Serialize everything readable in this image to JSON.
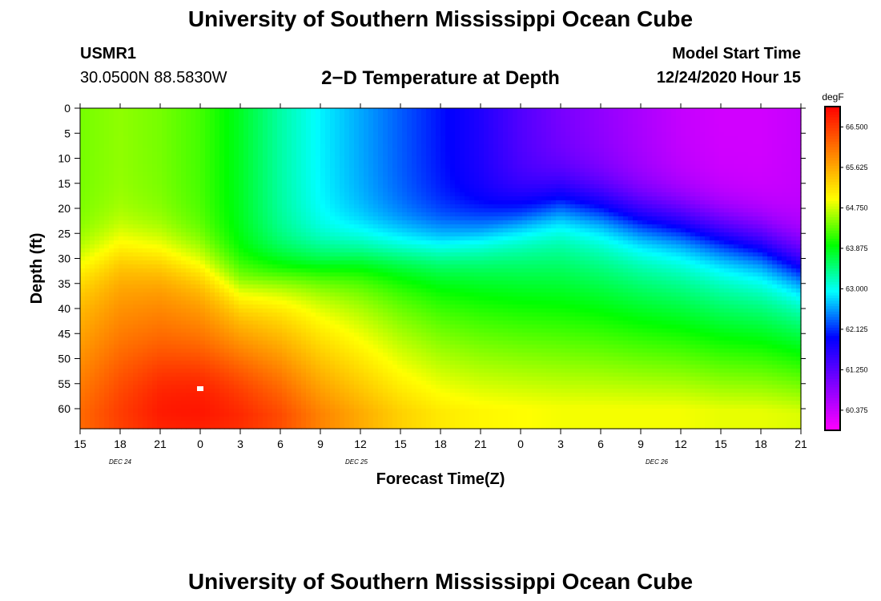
{
  "page": {
    "title_top": "University of Southern Mississippi Ocean Cube",
    "title_bottom": "University of Southern Mississippi Ocean Cube"
  },
  "header": {
    "station_id": "USMR1",
    "coordinates": "30.0500N 88.5830W",
    "plot_title": "2−D Temperature at Depth",
    "model_start_label": "Model Start Time",
    "model_start_value": "12/24/2020 Hour 15"
  },
  "chart_data": {
    "type": "heatmap",
    "title": "2−D Temperature at Depth",
    "xlabel": "Forecast Time(Z)",
    "ylabel": "Depth (ft)",
    "x_tick_labels": [
      "15",
      "18",
      "21",
      "0",
      "3",
      "6",
      "9",
      "12",
      "15",
      "18",
      "21",
      "0",
      "3",
      "6",
      "9",
      "12",
      "15",
      "18",
      "21"
    ],
    "date_labels": [
      {
        "text": "DEC 24",
        "at_tick": 1
      },
      {
        "text": "DEC 25",
        "at_tick": 6.9
      },
      {
        "text": "DEC 26",
        "at_tick": 14.4
      }
    ],
    "x_range_hours": [
      0,
      54
    ],
    "y_ticks": [
      0,
      5,
      10,
      15,
      20,
      25,
      30,
      35,
      40,
      45,
      50,
      55,
      60
    ],
    "ylim": [
      0,
      64
    ],
    "colorbar": {
      "unit": "degF",
      "min": 59.94,
      "max": 66.94,
      "tick_labels": [
        "66.500",
        "65.625",
        "64.750",
        "63.875",
        "63.000",
        "62.125",
        "61.250",
        "60.375"
      ],
      "tick_values": [
        66.5,
        65.625,
        64.75,
        63.875,
        63.0,
        62.125,
        61.25,
        60.375
      ],
      "colors": [
        "#ff00ff",
        "#8000ff",
        "#0000ff",
        "#00ffff",
        "#00ff00",
        "#ffff00",
        "#ff8000",
        "#ff0000"
      ]
    },
    "thermocline_depth_ft": {
      "hours": [
        0,
        3,
        6,
        9,
        12,
        15,
        18,
        21,
        24,
        27,
        30,
        33,
        36,
        39,
        42,
        45,
        48,
        51,
        54
      ],
      "depths": [
        30,
        27,
        28,
        30,
        34,
        32,
        30,
        28,
        27,
        26,
        24,
        21,
        18,
        19,
        21,
        22,
        24,
        26,
        30
      ]
    },
    "surface_temperature_degF": {
      "hours": [
        0,
        3,
        6,
        9,
        12,
        15,
        18,
        21,
        24,
        27,
        30,
        33,
        36,
        39,
        42,
        45,
        48,
        51,
        54
      ],
      "values": [
        64.4,
        64.5,
        64.4,
        64.2,
        63.8,
        63.3,
        62.9,
        62.6,
        62.3,
        62.0,
        61.7,
        61.3,
        61.0,
        60.8,
        60.6,
        60.4,
        60.3,
        60.3,
        60.4
      ]
    },
    "deep_temperature_degF": {
      "hours": [
        0,
        3,
        6,
        9,
        12,
        15,
        18,
        21,
        24,
        27,
        30,
        33,
        36,
        39,
        42,
        45,
        48,
        51,
        54
      ],
      "values": [
        66.1,
        66.4,
        66.6,
        66.6,
        66.5,
        66.3,
        65.9,
        65.6,
        65.3,
        65.1,
        65.0,
        64.95,
        64.9,
        64.9,
        64.9,
        64.9,
        64.85,
        64.85,
        64.8
      ]
    },
    "marker": {
      "hour": 9,
      "depth": 56
    }
  }
}
